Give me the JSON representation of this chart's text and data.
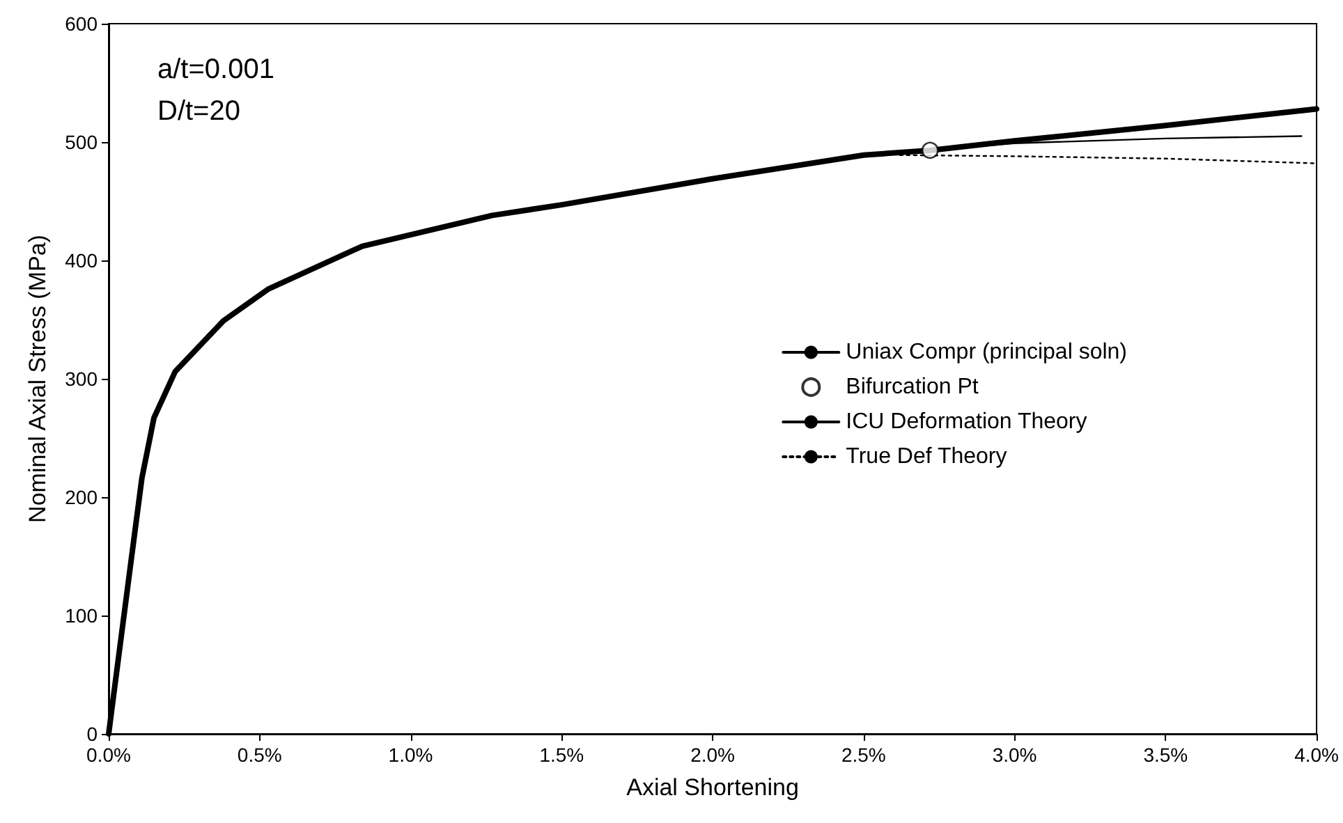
{
  "chart_data": {
    "type": "line",
    "xlabel": "Axial Shortening",
    "ylabel": "Nominal Axial Stress (MPa)",
    "annotations": [
      "a/t=0.001",
      "D/t=20"
    ],
    "xlim": [
      0,
      4
    ],
    "xticks": [
      {
        "value": 0,
        "label": "0.0%"
      },
      {
        "value": 0.5,
        "label": "0.5%"
      },
      {
        "value": 1,
        "label": "1.0%"
      },
      {
        "value": 1.5,
        "label": "1.5%"
      },
      {
        "value": 2,
        "label": "2.0%"
      },
      {
        "value": 2.5,
        "label": "2.5%"
      },
      {
        "value": 3,
        "label": "3.0%"
      },
      {
        "value": 3.5,
        "label": "3.5%"
      },
      {
        "value": 4,
        "label": "4.0%"
      }
    ],
    "ylim": [
      0,
      600
    ],
    "yticks": [
      0,
      100,
      200,
      300,
      400,
      500,
      600
    ],
    "grid": false,
    "legend": "right",
    "series": [
      {
        "name": "Uniax Compr (principal soln)",
        "color": "#000000",
        "marker": "none",
        "line_style": "solid",
        "x": [
          0,
          0.01,
          0.07,
          0.11,
          0.15,
          0.22,
          0.38,
          0.53,
          0.84,
          1.27,
          1.5,
          2.0,
          2.5,
          2.72,
          3.0,
          3.5,
          4.0
        ],
        "values": [
          0,
          20,
          138,
          216,
          267,
          306,
          349,
          376,
          412,
          438,
          447,
          469,
          489,
          493,
          501,
          514,
          528
        ]
      },
      {
        "name": "Bifurcation Pt",
        "type": "scatter",
        "color": "#000000",
        "marker": "circle",
        "x": [
          2.72
        ],
        "values": [
          493
        ]
      },
      {
        "name": "ICU Deformation Theory",
        "color": "#000000",
        "marker": "none",
        "line_style": "solid",
        "x": [
          2.72,
          3.0,
          3.5,
          3.95
        ],
        "values": [
          493,
          499,
          503,
          505
        ]
      },
      {
        "name": "True Def Theory",
        "color": "#000000",
        "marker": "none",
        "line_style": "dotted",
        "x": [
          2.62,
          3.0,
          3.5,
          4.0
        ],
        "values": [
          489,
          488,
          486,
          482
        ]
      }
    ]
  }
}
